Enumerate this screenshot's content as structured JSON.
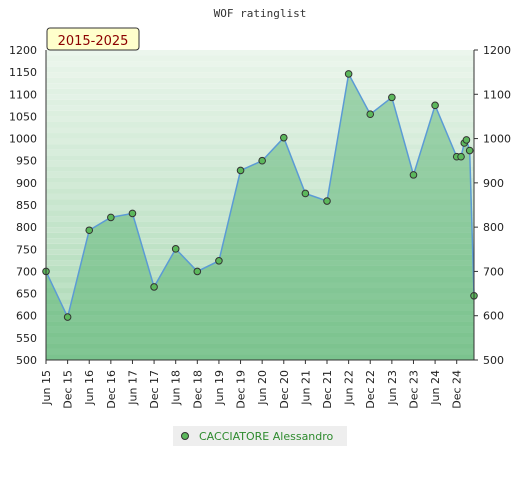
{
  "chart_data": {
    "type": "area",
    "title": "WOF ratinglist",
    "badge": "2015-2025",
    "ylim": [
      500,
      1200
    ],
    "y_ticks": [
      500,
      550,
      600,
      650,
      700,
      750,
      800,
      850,
      900,
      950,
      1000,
      1050,
      1100,
      1150,
      1200
    ],
    "x_ticks": [
      {
        "label": "Jun 15",
        "x": 0
      },
      {
        "label": "Dec 15",
        "x": 1
      },
      {
        "label": "Jun 16",
        "x": 2
      },
      {
        "label": "Dec 16",
        "x": 3
      },
      {
        "label": "Jun 17",
        "x": 4
      },
      {
        "label": "Dec 17",
        "x": 5
      },
      {
        "label": "Jun 18",
        "x": 6
      },
      {
        "label": "Dec 18",
        "x": 7
      },
      {
        "label": "Jun 19",
        "x": 8
      },
      {
        "label": "Dec 19",
        "x": 9
      },
      {
        "label": "Jun 20",
        "x": 10
      },
      {
        "label": "Dec 20",
        "x": 11
      },
      {
        "label": "Jun 21",
        "x": 12
      },
      {
        "label": "Dec 21",
        "x": 13
      },
      {
        "label": "Jun 22",
        "x": 14
      },
      {
        "label": "Dec 22",
        "x": 15
      },
      {
        "label": "Jun 23",
        "x": 16
      },
      {
        "label": "Dec 23",
        "x": 17
      },
      {
        "label": "Jun 24",
        "x": 18
      },
      {
        "label": "Dec 24",
        "x": 19
      }
    ],
    "xlim": [
      0,
      19.8
    ],
    "series": [
      {
        "name": "CACCIATORE Alessandro",
        "color": "#5cb85c",
        "points": [
          {
            "x": 0,
            "y": 700
          },
          {
            "x": 1,
            "y": 597
          },
          {
            "x": 2,
            "y": 793
          },
          {
            "x": 3,
            "y": 822
          },
          {
            "x": 4,
            "y": 831
          },
          {
            "x": 5,
            "y": 665
          },
          {
            "x": 6,
            "y": 751
          },
          {
            "x": 7,
            "y": 700
          },
          {
            "x": 8,
            "y": 724
          },
          {
            "x": 9,
            "y": 928
          },
          {
            "x": 10,
            "y": 950
          },
          {
            "x": 11,
            "y": 1002
          },
          {
            "x": 12,
            "y": 876
          },
          {
            "x": 13,
            "y": 859
          },
          {
            "x": 14,
            "y": 1146
          },
          {
            "x": 15,
            "y": 1055
          },
          {
            "x": 16,
            "y": 1093
          },
          {
            "x": 17,
            "y": 918
          },
          {
            "x": 18,
            "y": 1075
          },
          {
            "x": 19,
            "y": 959
          },
          {
            "x": 19.2,
            "y": 959
          },
          {
            "x": 19.35,
            "y": 990
          },
          {
            "x": 19.45,
            "y": 997
          },
          {
            "x": 19.6,
            "y": 973
          },
          {
            "x": 19.8,
            "y": 645
          }
        ]
      }
    ],
    "legend_position": "bottom-center"
  }
}
